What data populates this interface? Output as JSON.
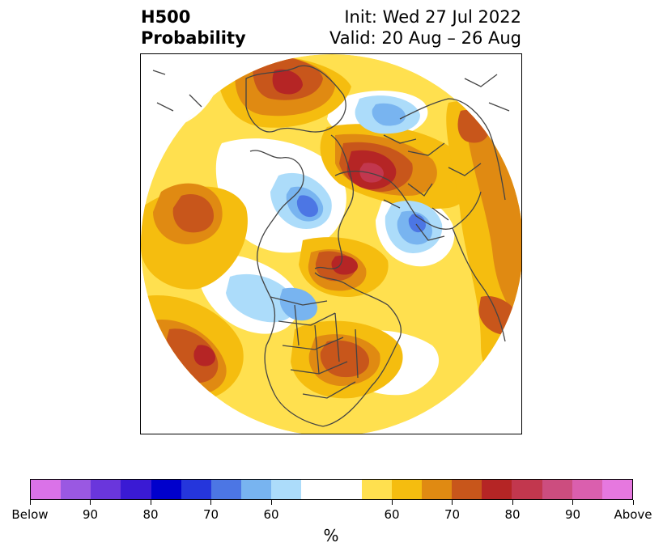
{
  "title": {
    "left_line1": "H500",
    "left_line2": "Probability",
    "right_line1": "Init: Wed 27 Jul 2022",
    "right_line2": "Valid: 20 Aug – 26 Aug"
  },
  "map": {
    "projection": "north-polar-stereographic",
    "colors": {
      "above_60": "#ffe04f",
      "above_65": "#f5bd0f",
      "above_70": "#e08a12",
      "above_75": "#c8561b",
      "above_80": "#b52525",
      "above_85": "#c2374e",
      "below_60": "#acdcfa",
      "below_65": "#78b4f0",
      "below_70": "#4c76e4",
      "coastline": "#444444"
    }
  },
  "colorbar": {
    "colors": [
      "#da72e8",
      "#9a58e2",
      "#6a36dc",
      "#3a1ad4",
      "#0000cc",
      "#2536dc",
      "#4c76e4",
      "#78b4f0",
      "#acdcfa",
      "#ffffff",
      "#ffe04f",
      "#f5bd0f",
      "#e08a12",
      "#c8561b",
      "#b52525",
      "#c2374e",
      "#cc4d7f",
      "#da5fae",
      "#e678df"
    ],
    "labels": [
      "Below",
      "90",
      "80",
      "70",
      "60",
      "60",
      "70",
      "80",
      "90",
      "Above"
    ],
    "unit": "%"
  }
}
